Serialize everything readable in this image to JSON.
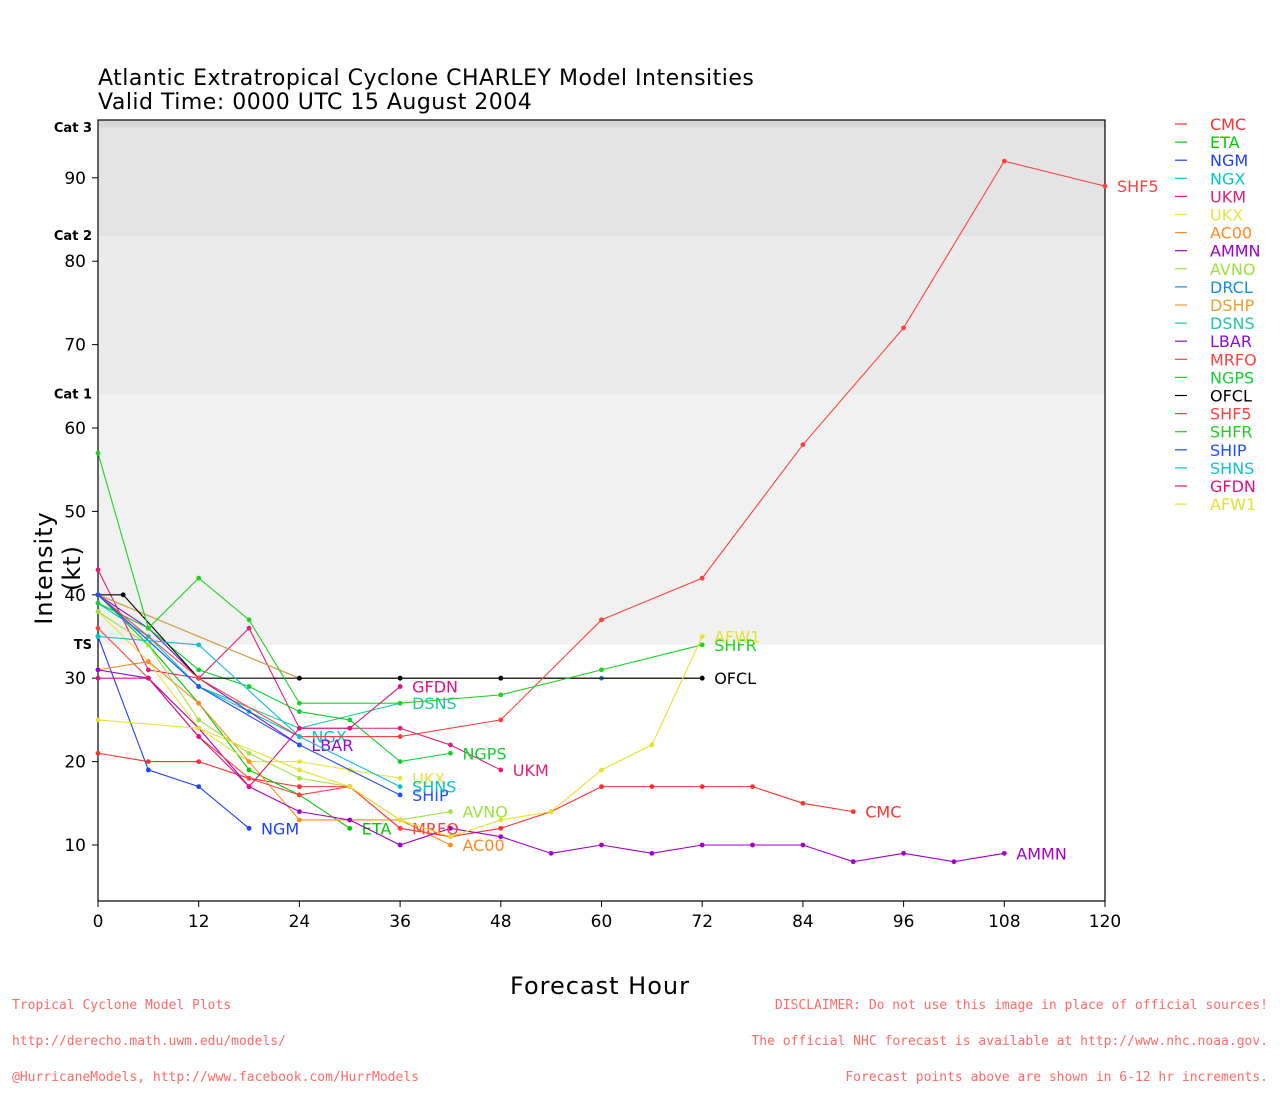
{
  "title_line1": "Atlantic Extratropical Cyclone CHARLEY Model Intensities",
  "title_line2": "Valid Time: 0000 UTC 15 August 2004",
  "footer_left": [
    "Tropical Cyclone Model Plots",
    "http://derecho.math.uwm.edu/models/",
    "@HurricaneModels, http://www.facebook.com/HurrModels"
  ],
  "footer_right": [
    "DISCLAIMER: Do not use this image in place of official sources!",
    "The official NHC forecast is available at http://www.nhc.noaa.gov.",
    "Forecast points above are shown in 6-12 hr increments."
  ],
  "colors": {
    "footer": "#ff6a6a",
    "band_dark": "#e4e4e4",
    "band_mid": "#ebebeb",
    "band_light": "#f1f1f1"
  },
  "chart_data": {
    "type": "line",
    "xlabel": "Forecast Hour",
    "ylabel": "Intensity (kt)",
    "xlim": [
      0,
      120
    ],
    "ylim": [
      3,
      96
    ],
    "xticks": [
      0,
      12,
      24,
      36,
      48,
      60,
      72,
      84,
      96,
      108,
      120
    ],
    "yticks": [
      10,
      20,
      30,
      40,
      50,
      60,
      70,
      80,
      90
    ],
    "category_bands": [
      {
        "label": "TS",
        "from": 34,
        "to": 64,
        "color": "#f1f1f1"
      },
      {
        "label": "Cat 1",
        "from": 64,
        "to": 83,
        "color": "#ebebeb"
      },
      {
        "label": "Cat 2",
        "from": 83,
        "to": 96,
        "color": "#e4e4e4"
      },
      {
        "label": "Cat 3",
        "from": 96,
        "to": 113,
        "color": "#d8d8d8"
      }
    ],
    "legend_position": "right",
    "series": [
      {
        "name": "CMC",
        "color": "#ff3030",
        "label": "CMC",
        "points": [
          [
            0,
            21
          ],
          [
            6,
            20
          ],
          [
            12,
            20
          ],
          [
            18,
            18
          ],
          [
            24,
            17
          ],
          [
            30,
            17
          ],
          [
            36,
            12
          ],
          [
            42,
            11
          ],
          [
            48,
            12
          ],
          [
            54,
            14
          ],
          [
            60,
            17
          ],
          [
            66,
            17
          ],
          [
            72,
            17
          ],
          [
            78,
            17
          ],
          [
            84,
            15
          ],
          [
            90,
            14
          ]
        ]
      },
      {
        "name": "ETA",
        "color": "#00cc00",
        "label": "ETA",
        "points": [
          [
            0,
            40
          ],
          [
            6,
            34
          ],
          [
            12,
            27
          ],
          [
            18,
            19
          ],
          [
            24,
            16
          ],
          [
            30,
            12
          ]
        ]
      },
      {
        "name": "NGM",
        "color": "#2040ff",
        "label": "NGM",
        "points": [
          [
            0,
            35
          ],
          [
            6,
            19
          ],
          [
            12,
            17
          ],
          [
            18,
            12
          ]
        ]
      },
      {
        "name": "NGX",
        "color": "#00c8c8",
        "label": "NGX",
        "points": [
          [
            0,
            39
          ],
          [
            6,
            35
          ],
          [
            12,
            29
          ],
          [
            18,
            26
          ],
          [
            24,
            23
          ]
        ]
      },
      {
        "name": "UKM",
        "color": "#e0207a",
        "label": "UKM",
        "points": [
          [
            0,
            43
          ],
          [
            6,
            31
          ],
          [
            12,
            30
          ],
          [
            18,
            36
          ],
          [
            24,
            24
          ],
          [
            30,
            24
          ],
          [
            36,
            24
          ],
          [
            42,
            22
          ],
          [
            48,
            19
          ]
        ]
      },
      {
        "name": "UKX",
        "color": "#e6e640",
        "label": "UKX",
        "points": [
          [
            0,
            38
          ],
          [
            6,
            32
          ],
          [
            12,
            24
          ],
          [
            18,
            20
          ],
          [
            24,
            20
          ],
          [
            30,
            19
          ],
          [
            36,
            18
          ]
        ]
      },
      {
        "name": "AC00",
        "color": "#ff8a20",
        "label": "AC00",
        "points": [
          [
            0,
            31
          ],
          [
            6,
            32
          ],
          [
            12,
            27
          ],
          [
            18,
            20
          ],
          [
            24,
            13
          ],
          [
            30,
            13
          ],
          [
            36,
            13
          ],
          [
            42,
            10
          ]
        ]
      },
      {
        "name": "AMMN",
        "color": "#a000c8",
        "label": "AMMN",
        "points": [
          [
            0,
            31
          ],
          [
            6,
            30
          ],
          [
            12,
            24
          ],
          [
            18,
            17
          ],
          [
            24,
            14
          ],
          [
            30,
            13
          ],
          [
            36,
            10
          ],
          [
            42,
            12
          ],
          [
            48,
            11
          ],
          [
            54,
            9
          ],
          [
            60,
            10
          ],
          [
            66,
            9
          ],
          [
            72,
            10
          ],
          [
            78,
            10
          ],
          [
            84,
            10
          ],
          [
            90,
            8
          ],
          [
            96,
            9
          ],
          [
            102,
            8
          ],
          [
            108,
            9
          ]
        ]
      },
      {
        "name": "AVNO",
        "color": "#a0e040",
        "label": "AVNO",
        "points": [
          [
            0,
            38
          ],
          [
            6,
            34
          ],
          [
            12,
            25
          ],
          [
            18,
            21
          ],
          [
            24,
            18
          ],
          [
            30,
            17
          ],
          [
            36,
            13
          ],
          [
            42,
            14
          ]
        ]
      },
      {
        "name": "DRCL",
        "color": "#1090e0",
        "label": "",
        "points": [
          [
            0,
            40
          ],
          [
            24,
            30
          ],
          [
            36,
            30
          ],
          [
            48,
            30
          ],
          [
            60,
            30
          ],
          [
            72,
            30
          ]
        ]
      },
      {
        "name": "DSHP",
        "color": "#e8a030",
        "label": "",
        "points": [
          [
            0,
            40
          ],
          [
            24,
            30
          ],
          [
            72,
            30
          ]
        ]
      },
      {
        "name": "DSNS",
        "color": "#20c8a0",
        "label": "DSNS",
        "points": [
          [
            0,
            40
          ],
          [
            12,
            29
          ],
          [
            24,
            24
          ],
          [
            36,
            27
          ]
        ]
      },
      {
        "name": "LBAR",
        "color": "#8a10d0",
        "label": "LBAR",
        "points": [
          [
            0,
            40
          ],
          [
            6,
            36
          ],
          [
            12,
            30
          ],
          [
            24,
            22
          ]
        ]
      },
      {
        "name": "MRFO",
        "color": "#ff4040",
        "label": "MRFO",
        "points": [
          [
            0,
            36
          ],
          [
            6,
            30
          ],
          [
            12,
            23
          ],
          [
            18,
            18
          ],
          [
            24,
            16
          ],
          [
            30,
            17
          ],
          [
            36,
            12
          ]
        ]
      },
      {
        "name": "NGPS",
        "color": "#10d030",
        "label": "NGPS",
        "points": [
          [
            0,
            39
          ],
          [
            6,
            36
          ],
          [
            12,
            31
          ],
          [
            18,
            29
          ],
          [
            24,
            26
          ],
          [
            30,
            25
          ],
          [
            36,
            20
          ],
          [
            42,
            21
          ]
        ]
      },
      {
        "name": "OFCL",
        "color": "#000000",
        "label": "OFCL",
        "points": [
          [
            0,
            40
          ],
          [
            3,
            40
          ],
          [
            12,
            30
          ],
          [
            24,
            30
          ],
          [
            36,
            30
          ],
          [
            48,
            30
          ],
          [
            72,
            30
          ]
        ]
      },
      {
        "name": "SHF5",
        "color": "#ff4040",
        "label": "SHF5",
        "points": [
          [
            0,
            40
          ],
          [
            12,
            30
          ],
          [
            24,
            23
          ],
          [
            36,
            23
          ],
          [
            48,
            25
          ],
          [
            60,
            37
          ],
          [
            72,
            42
          ],
          [
            84,
            58
          ],
          [
            96,
            72
          ],
          [
            108,
            92
          ],
          [
            120,
            89
          ]
        ]
      },
      {
        "name": "SHFR",
        "color": "#20d020",
        "label": "SHFR",
        "points": [
          [
            0,
            57
          ],
          [
            6,
            36
          ],
          [
            12,
            42
          ],
          [
            18,
            37
          ],
          [
            24,
            27
          ],
          [
            36,
            27
          ],
          [
            48,
            28
          ],
          [
            60,
            31
          ],
          [
            72,
            34
          ]
        ]
      },
      {
        "name": "SHIP",
        "color": "#2050ff",
        "label": "SHIP",
        "points": [
          [
            0,
            40
          ],
          [
            12,
            29
          ],
          [
            24,
            22
          ],
          [
            36,
            16
          ]
        ]
      },
      {
        "name": "SHNS",
        "color": "#10c0d0",
        "label": "SHNS",
        "points": [
          [
            0,
            35
          ],
          [
            12,
            34
          ],
          [
            24,
            23
          ],
          [
            36,
            17
          ]
        ]
      },
      {
        "name": "GFDN",
        "color": "#e01080",
        "label": "GFDN",
        "points": [
          [
            0,
            30
          ],
          [
            6,
            30
          ],
          [
            12,
            23
          ],
          [
            18,
            17
          ],
          [
            24,
            24
          ],
          [
            30,
            24
          ],
          [
            36,
            29
          ]
        ]
      },
      {
        "name": "AFW1",
        "color": "#e6e030",
        "label": "AFW1",
        "points": [
          [
            0,
            25
          ],
          [
            12,
            24
          ],
          [
            24,
            19
          ],
          [
            30,
            17
          ],
          [
            36,
            13
          ],
          [
            42,
            11
          ],
          [
            48,
            13
          ],
          [
            54,
            14
          ],
          [
            60,
            19
          ],
          [
            66,
            22
          ],
          [
            72,
            35
          ]
        ]
      }
    ]
  }
}
